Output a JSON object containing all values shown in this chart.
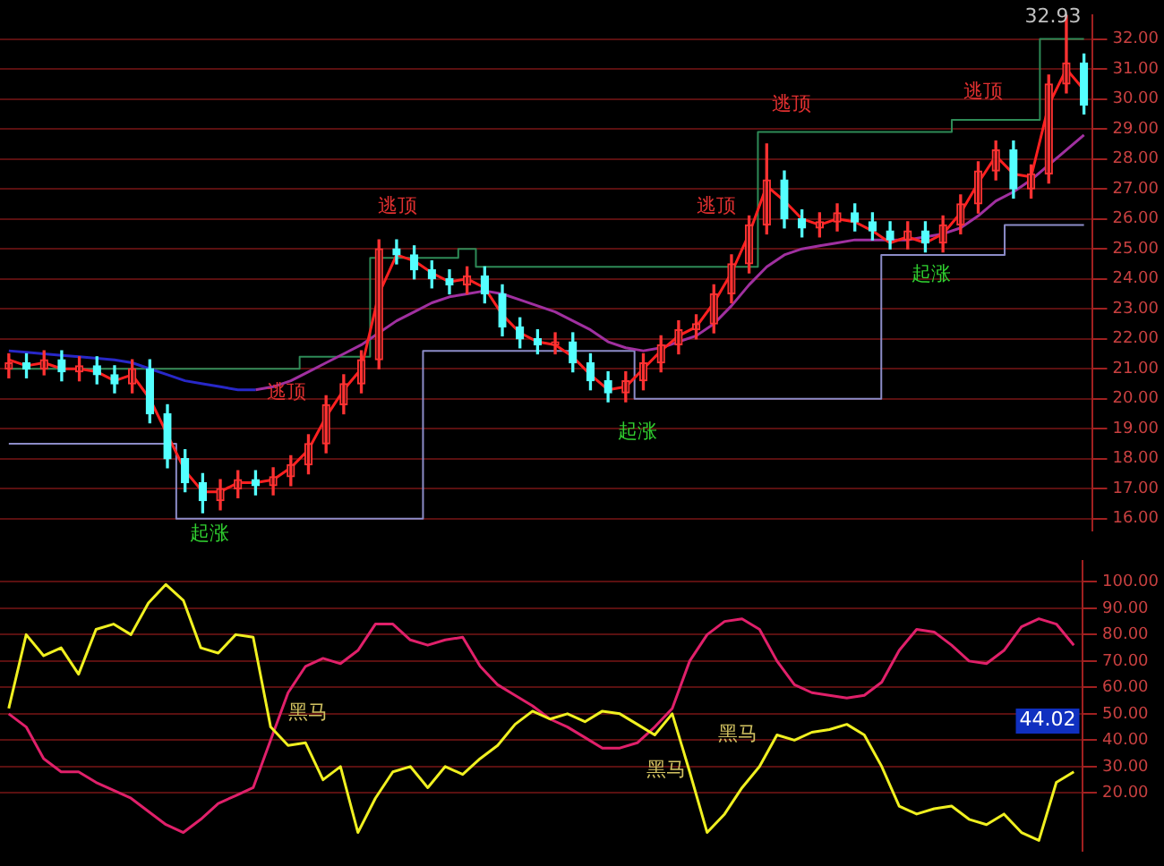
{
  "chart_data": [
    {
      "type": "candlestick",
      "categories": [
        null,
        null,
        null,
        null,
        null,
        null,
        null,
        null,
        null,
        null,
        null,
        null,
        null,
        null,
        null,
        null,
        null,
        null,
        null,
        null,
        null,
        null,
        null,
        null,
        null,
        null,
        null,
        null,
        null,
        null,
        null,
        null,
        null,
        null,
        null,
        null,
        null,
        null,
        null,
        null,
        null,
        null,
        null,
        null,
        null,
        null,
        null,
        null,
        null,
        null,
        null,
        null,
        null,
        null,
        null,
        null,
        null,
        null,
        null,
        null,
        null,
        null
      ],
      "ohlc": [
        [
          21.0,
          21.5,
          20.7,
          21.2
        ],
        [
          21.2,
          21.5,
          20.7,
          21.0
        ],
        [
          21.0,
          21.6,
          20.8,
          21.3
        ],
        [
          21.3,
          21.6,
          20.6,
          20.9
        ],
        [
          20.9,
          21.4,
          20.6,
          21.1
        ],
        [
          21.1,
          21.4,
          20.5,
          20.8
        ],
        [
          20.8,
          21.1,
          20.2,
          20.5
        ],
        [
          20.5,
          21.3,
          20.2,
          21.0
        ],
        [
          21.0,
          21.3,
          19.2,
          19.5
        ],
        [
          19.5,
          19.8,
          17.7,
          18.0
        ],
        [
          18.0,
          18.3,
          16.9,
          17.2
        ],
        [
          17.2,
          17.5,
          16.2,
          16.6
        ],
        [
          16.6,
          17.3,
          16.3,
          17.0
        ],
        [
          17.0,
          17.6,
          16.7,
          17.3
        ],
        [
          17.3,
          17.6,
          16.8,
          17.1
        ],
        [
          17.1,
          17.7,
          16.8,
          17.4
        ],
        [
          17.4,
          18.1,
          17.1,
          17.8
        ],
        [
          17.8,
          18.8,
          17.5,
          18.5
        ],
        [
          18.5,
          20.1,
          18.2,
          19.8
        ],
        [
          19.8,
          20.8,
          19.5,
          20.5
        ],
        [
          20.5,
          21.6,
          20.2,
          21.3
        ],
        [
          21.3,
          25.3,
          21.0,
          25.0
        ],
        [
          25.0,
          25.3,
          24.5,
          24.8
        ],
        [
          24.8,
          25.1,
          24.0,
          24.3
        ],
        [
          24.3,
          24.6,
          23.7,
          24.0
        ],
        [
          24.0,
          24.3,
          23.5,
          23.8
        ],
        [
          23.8,
          24.4,
          23.5,
          24.1
        ],
        [
          24.1,
          24.4,
          23.2,
          23.5
        ],
        [
          23.5,
          23.8,
          22.1,
          22.4
        ],
        [
          22.4,
          22.7,
          21.7,
          22.0
        ],
        [
          22.0,
          22.3,
          21.5,
          21.8
        ],
        [
          21.8,
          22.2,
          21.5,
          21.9
        ],
        [
          21.9,
          22.2,
          20.9,
          21.2
        ],
        [
          21.2,
          21.5,
          20.3,
          20.6
        ],
        [
          20.6,
          20.9,
          19.9,
          20.2
        ],
        [
          20.2,
          20.9,
          19.9,
          20.6
        ],
        [
          20.6,
          21.5,
          20.3,
          21.2
        ],
        [
          21.2,
          22.1,
          20.9,
          21.8
        ],
        [
          21.8,
          22.6,
          21.5,
          22.3
        ],
        [
          22.3,
          22.8,
          22.0,
          22.5
        ],
        [
          22.5,
          23.8,
          22.2,
          23.5
        ],
        [
          23.5,
          24.8,
          23.2,
          24.5
        ],
        [
          24.5,
          26.1,
          24.2,
          25.8
        ],
        [
          25.8,
          28.5,
          25.5,
          27.3
        ],
        [
          27.3,
          27.6,
          25.7,
          26.0
        ],
        [
          26.0,
          26.3,
          25.4,
          25.7
        ],
        [
          25.7,
          26.2,
          25.4,
          25.9
        ],
        [
          25.9,
          26.5,
          25.6,
          26.2
        ],
        [
          26.2,
          26.5,
          25.6,
          25.9
        ],
        [
          25.9,
          26.2,
          25.3,
          25.6
        ],
        [
          25.6,
          25.9,
          25.0,
          25.3
        ],
        [
          25.3,
          25.9,
          25.0,
          25.6
        ],
        [
          25.6,
          25.9,
          24.9,
          25.2
        ],
        [
          25.2,
          26.1,
          24.9,
          25.8
        ],
        [
          25.8,
          26.8,
          25.5,
          26.5
        ],
        [
          26.5,
          27.9,
          26.2,
          27.6
        ],
        [
          27.6,
          28.6,
          27.3,
          28.3
        ],
        [
          28.3,
          28.6,
          26.7,
          27.0
        ],
        [
          27.0,
          27.8,
          26.7,
          27.5
        ],
        [
          27.5,
          30.8,
          27.2,
          30.5
        ],
        [
          30.5,
          32.93,
          30.2,
          31.2
        ],
        [
          31.2,
          31.5,
          29.5,
          29.8
        ]
      ],
      "series": [
        {
          "type": "line",
          "color": "#ff2020",
          "values": [
            21.3,
            21.1,
            21.2,
            21.0,
            21.0,
            20.9,
            20.6,
            20.8,
            20.0,
            18.8,
            17.6,
            16.9,
            16.9,
            17.2,
            17.2,
            17.3,
            17.7,
            18.3,
            19.4,
            20.3,
            21.0,
            23.5,
            24.8,
            24.6,
            24.2,
            23.9,
            24.0,
            23.7,
            22.8,
            22.2,
            21.9,
            21.8,
            21.4,
            20.8,
            20.3,
            20.4,
            21.0,
            21.6,
            22.1,
            22.4,
            23.2,
            24.2,
            25.5,
            27.1,
            26.6,
            26.0,
            25.8,
            26.0,
            25.9,
            25.6,
            25.2,
            25.4,
            25.2,
            25.5,
            26.2,
            27.2,
            28.1,
            27.5,
            27.4,
            29.8,
            31.0,
            30.3
          ]
        },
        {
          "type": "line",
          "color": "#2828c8",
          "values": [
            21.6,
            21.55,
            21.5,
            21.45,
            21.4,
            21.35,
            21.3,
            21.2,
            21.0,
            20.8,
            20.6,
            20.5,
            20.4,
            20.3,
            20.3,
            null,
            null,
            null,
            null,
            null,
            null,
            null,
            null,
            null,
            null,
            null,
            null,
            null,
            null,
            null,
            null,
            null,
            null,
            null,
            null,
            null,
            null,
            null,
            null,
            null,
            null,
            null,
            null,
            null,
            null,
            null,
            null,
            null,
            null,
            null,
            null,
            null,
            null,
            null,
            null,
            null,
            null,
            null,
            null,
            null,
            null,
            null
          ]
        },
        {
          "type": "line",
          "color": "#a030a0",
          "values": [
            null,
            null,
            null,
            null,
            null,
            null,
            null,
            null,
            null,
            null,
            null,
            null,
            null,
            null,
            20.3,
            20.4,
            20.6,
            20.9,
            21.2,
            21.5,
            21.8,
            22.2,
            22.6,
            22.9,
            23.2,
            23.4,
            23.5,
            23.6,
            23.5,
            23.3,
            23.1,
            22.9,
            22.6,
            22.3,
            21.9,
            21.7,
            21.6,
            21.7,
            21.9,
            22.1,
            22.5,
            23.1,
            23.8,
            24.4,
            24.8,
            25.0,
            25.1,
            25.2,
            25.3,
            25.3,
            25.3,
            25.3,
            25.4,
            25.5,
            25.7,
            26.1,
            26.6,
            26.9,
            27.3,
            27.8,
            28.3,
            28.8
          ]
        },
        {
          "type": "step",
          "color": "#2e8b57",
          "values": [
            21.0,
            21.0,
            21.0,
            21.0,
            21.0,
            21.0,
            21.0,
            21.0,
            21.0,
            21.0,
            21.0,
            21.0,
            21.0,
            21.0,
            21.0,
            21.0,
            21.0,
            21.4,
            21.4,
            21.4,
            21.4,
            24.7,
            24.7,
            24.7,
            24.7,
            24.7,
            25.0,
            24.4,
            24.4,
            24.4,
            24.4,
            24.4,
            24.4,
            24.4,
            24.4,
            24.4,
            24.4,
            24.4,
            24.4,
            24.4,
            24.4,
            24.4,
            24.4,
            28.9,
            28.9,
            28.9,
            28.9,
            28.9,
            28.9,
            28.9,
            28.9,
            28.9,
            28.9,
            28.9,
            29.3,
            29.3,
            29.3,
            29.3,
            29.3,
            32.0,
            32.0,
            32.0
          ]
        },
        {
          "type": "step",
          "color": "#8c8cc8",
          "values": [
            18.5,
            18.5,
            18.5,
            18.5,
            18.5,
            18.5,
            18.5,
            18.5,
            18.5,
            18.5,
            16.0,
            16.0,
            16.0,
            16.0,
            16.0,
            16.0,
            16.0,
            16.0,
            16.0,
            16.0,
            16.0,
            16.0,
            16.0,
            16.0,
            21.6,
            21.6,
            21.6,
            21.6,
            21.6,
            21.6,
            21.6,
            21.6,
            21.6,
            21.6,
            21.6,
            21.6,
            20.0,
            20.0,
            20.0,
            20.0,
            20.0,
            20.0,
            20.0,
            20.0,
            20.0,
            20.0,
            20.0,
            20.0,
            20.0,
            20.0,
            24.8,
            24.8,
            24.8,
            24.8,
            24.8,
            24.8,
            24.8,
            25.8,
            25.8,
            25.8,
            25.8,
            25.8
          ]
        }
      ],
      "ylim": [
        15.6,
        32.8
      ],
      "yticks": [
        {
          "value": 16,
          "label": "16.00"
        },
        {
          "value": 17,
          "label": "17.00"
        },
        {
          "value": 18,
          "label": "18.00"
        },
        {
          "value": 19,
          "label": "19.00"
        },
        {
          "value": 20,
          "label": "20.00"
        },
        {
          "value": 21,
          "label": "21.00"
        },
        {
          "value": 22,
          "label": "22.00"
        },
        {
          "value": 23,
          "label": "23.00"
        },
        {
          "value": 24,
          "label": "24.00"
        },
        {
          "value": 25,
          "label": "25.00"
        },
        {
          "value": 26,
          "label": "26.00"
        },
        {
          "value": 27,
          "label": "27.00"
        },
        {
          "value": 28,
          "label": "28.00"
        },
        {
          "value": 29,
          "label": "29.00"
        },
        {
          "value": 30,
          "label": "30.00"
        },
        {
          "value": 31,
          "label": "31.00"
        },
        {
          "value": 32,
          "label": "32.00"
        }
      ],
      "grid": "y",
      "tick_labels": "y",
      "annotations": [
        "逃顶",
        "逃顶",
        "逃顶",
        "逃顶",
        "逃顶",
        "起涨",
        "起涨",
        "起涨",
        "32.93"
      ]
    },
    {
      "type": "line",
      "categories": [
        null,
        null,
        null,
        null,
        null,
        null,
        null,
        null,
        null,
        null,
        null,
        null,
        null,
        null,
        null,
        null,
        null,
        null,
        null,
        null,
        null,
        null,
        null,
        null,
        null,
        null,
        null,
        null,
        null,
        null,
        null,
        null,
        null,
        null,
        null,
        null,
        null,
        null,
        null,
        null,
        null,
        null,
        null,
        null,
        null,
        null,
        null,
        null,
        null,
        null,
        null,
        null,
        null,
        null,
        null,
        null,
        null,
        null,
        null,
        null,
        null,
        null
      ],
      "series": [
        {
          "color": "#f0f020",
          "values": [
            52,
            80,
            72,
            75,
            65,
            82,
            84,
            80,
            92,
            99,
            93,
            75,
            73,
            80,
            79,
            45,
            38,
            39,
            25,
            30,
            5,
            18,
            28,
            30,
            22,
            30,
            27,
            33,
            38,
            46,
            51,
            48,
            50,
            47,
            51,
            50,
            46,
            42,
            50,
            28,
            5,
            12,
            22,
            30,
            42,
            40,
            43,
            44,
            46,
            42,
            30,
            15,
            12,
            14,
            15,
            10,
            8,
            12,
            5,
            2,
            24,
            28
          ]
        },
        {
          "color": "#e0206a",
          "values": [
            50,
            45,
            33,
            28,
            28,
            24,
            21,
            18,
            13,
            8,
            5,
            10,
            16,
            19,
            22,
            40,
            58,
            68,
            71,
            69,
            74,
            84,
            84,
            78,
            76,
            78,
            79,
            68,
            61,
            57,
            53,
            48,
            45,
            41,
            37,
            37,
            39,
            45,
            52,
            70,
            80,
            85,
            86,
            82,
            70,
            61,
            58,
            57,
            56,
            57,
            62,
            74,
            82,
            81,
            76,
            70,
            69,
            74,
            83,
            86,
            84,
            76
          ]
        }
      ],
      "ylim": [
        -2,
        108
      ],
      "yticks": [
        {
          "value": 20,
          "label": "20.00"
        },
        {
          "value": 30,
          "label": "30.00"
        },
        {
          "value": 40,
          "label": "40.00"
        },
        {
          "value": 50,
          "label": "50.00"
        },
        {
          "value": 60,
          "label": "60.00"
        },
        {
          "value": 70,
          "label": "70.00"
        },
        {
          "value": 80,
          "label": "80.00"
        },
        {
          "value": 90,
          "label": "90.00"
        },
        {
          "value": 100,
          "label": "100.00"
        }
      ],
      "grid": "y",
      "tick_labels": "y",
      "annotations": [
        "黑马",
        "黑马",
        "黑马",
        "44.02"
      ]
    }
  ]
}
